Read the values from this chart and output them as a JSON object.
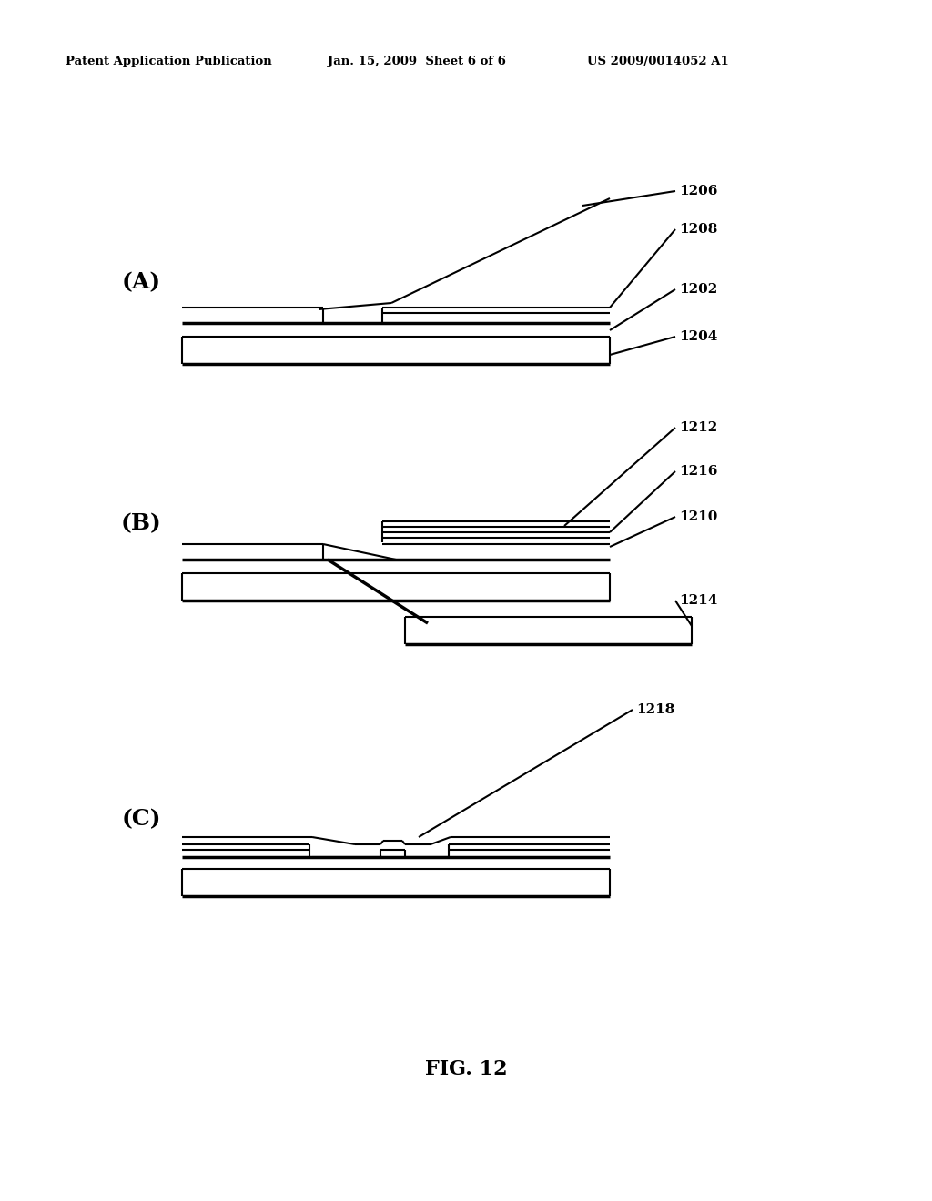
{
  "background_color": "#ffffff",
  "header_left": "Patent Application Publication",
  "header_center": "Jan. 15, 2009  Sheet 6 of 6",
  "header_right": "US 2009/0014052 A1",
  "fig_label": "FIG. 12",
  "label_A": "(A)",
  "label_B": "(B)",
  "label_C": "(C)",
  "ref_1206": "1206",
  "ref_1208": "1208",
  "ref_1202": "1202",
  "ref_1204": "1204",
  "ref_1212": "1212",
  "ref_1216": "1216",
  "ref_1210": "1210",
  "ref_1214": "1214",
  "ref_1218": "1218",
  "line_color": "#000000",
  "lw": 1.5,
  "tlw": 2.5
}
